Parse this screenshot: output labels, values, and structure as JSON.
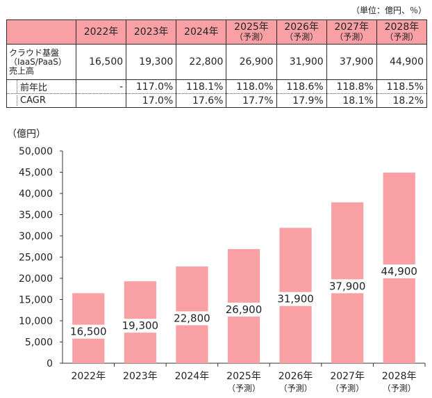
{
  "unit_note": "（単位：億円、％）",
  "table": {
    "headers": [
      {
        "year": "2022年",
        "sub": ""
      },
      {
        "year": "2023年",
        "sub": ""
      },
      {
        "year": "2024年",
        "sub": ""
      },
      {
        "year": "2025年",
        "sub": "（予測）"
      },
      {
        "year": "2026年",
        "sub": "（予測）"
      },
      {
        "year": "2027年",
        "sub": "（予測）"
      },
      {
        "year": "2028年",
        "sub": "（予測）"
      }
    ],
    "rows": [
      {
        "label": "クラウド基盤（IaaS/PaaS）売上高",
        "cells": [
          "16,500",
          "19,300",
          "22,800",
          "26,900",
          "31,900",
          "37,900",
          "44,900"
        ]
      },
      {
        "label": "前年比",
        "cells": [
          "-",
          "117.0%",
          "118.1%",
          "118.0%",
          "118.6%",
          "118.8%",
          "118.5%"
        ]
      },
      {
        "label": "CAGR",
        "cells": [
          "",
          "17.0%",
          "17.6%",
          "17.7%",
          "17.9%",
          "18.1%",
          "18.2%"
        ]
      }
    ]
  },
  "chart_data": {
    "type": "bar",
    "ylabel": "（億円）",
    "ylim": [
      0,
      50000
    ],
    "yticks": [
      "0",
      "5,000",
      "10,000",
      "15,000",
      "20,000",
      "25,000",
      "30,000",
      "35,000",
      "40,000",
      "45,000",
      "50,000"
    ],
    "categories": [
      "2022年",
      "2023年",
      "2024年",
      "2025年",
      "2026年",
      "2027年",
      "2028年"
    ],
    "category_sub": [
      "",
      "",
      "",
      "（予測）",
      "（予測）",
      "（予測）",
      "（予測）"
    ],
    "values": [
      16500,
      19300,
      22800,
      26900,
      31900,
      37900,
      44900
    ],
    "value_labels": [
      "16,500",
      "19,300",
      "22,800",
      "26,900",
      "31,900",
      "37,900",
      "44,900"
    ],
    "bar_color": "#f9a0a5",
    "grid": false
  }
}
